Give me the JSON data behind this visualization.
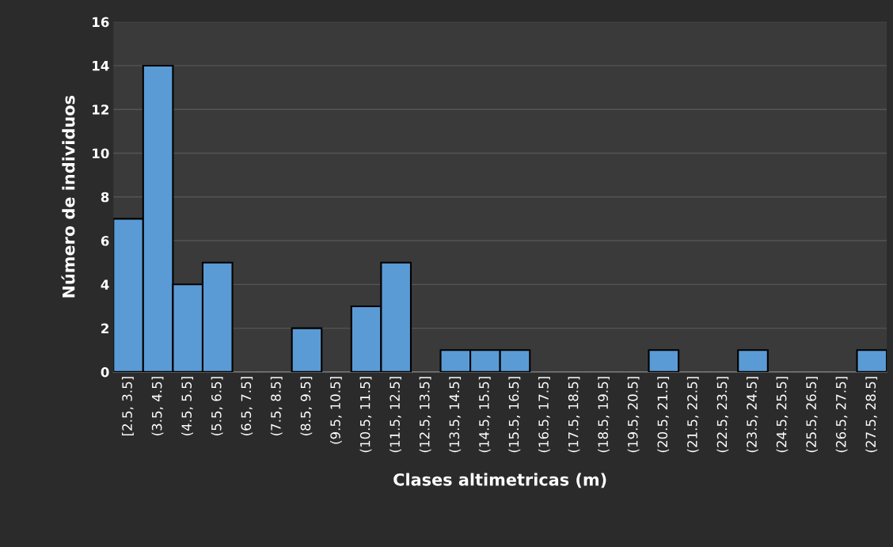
{
  "chart_data": {
    "type": "bar",
    "xlabel": "Clases altimetricas (m)",
    "ylabel": "Número de individuos",
    "categories": [
      "[2.5, 3.5]",
      "(3.5, 4.5]",
      "(4.5, 5.5]",
      "(5.5, 6.5]",
      "(6.5, 7.5]",
      "(7.5, 8.5]",
      "(8.5, 9.5]",
      "(9.5, 10.5]",
      "(10.5, 11.5]",
      "(11.5, 12.5]",
      "(12.5, 13.5]",
      "(13.5, 14.5]",
      "(14.5, 15.5]",
      "(15.5, 16.5]",
      "(16.5, 17.5]",
      "(17.5, 18.5]",
      "(18.5, 19.5]",
      "(19.5, 20.5]",
      "(20.5, 21.5]",
      "(21.5, 22.5]",
      "(22.5, 23.5]",
      "(23.5, 24.5]",
      "(24.5, 25.5]",
      "(25.5, 26.5]",
      "(26.5, 27.5]",
      "(27.5, 28.5]"
    ],
    "values": [
      7,
      14,
      4,
      5,
      0,
      0,
      2,
      0,
      3,
      5,
      0,
      1,
      1,
      1,
      0,
      0,
      0,
      0,
      1,
      0,
      0,
      1,
      0,
      0,
      0,
      1
    ],
    "color": "#5b9bd5",
    "ylim": [
      0,
      16
    ],
    "yticks": [
      0,
      2,
      4,
      6,
      8,
      10,
      12,
      14,
      16
    ],
    "grid": "y"
  }
}
